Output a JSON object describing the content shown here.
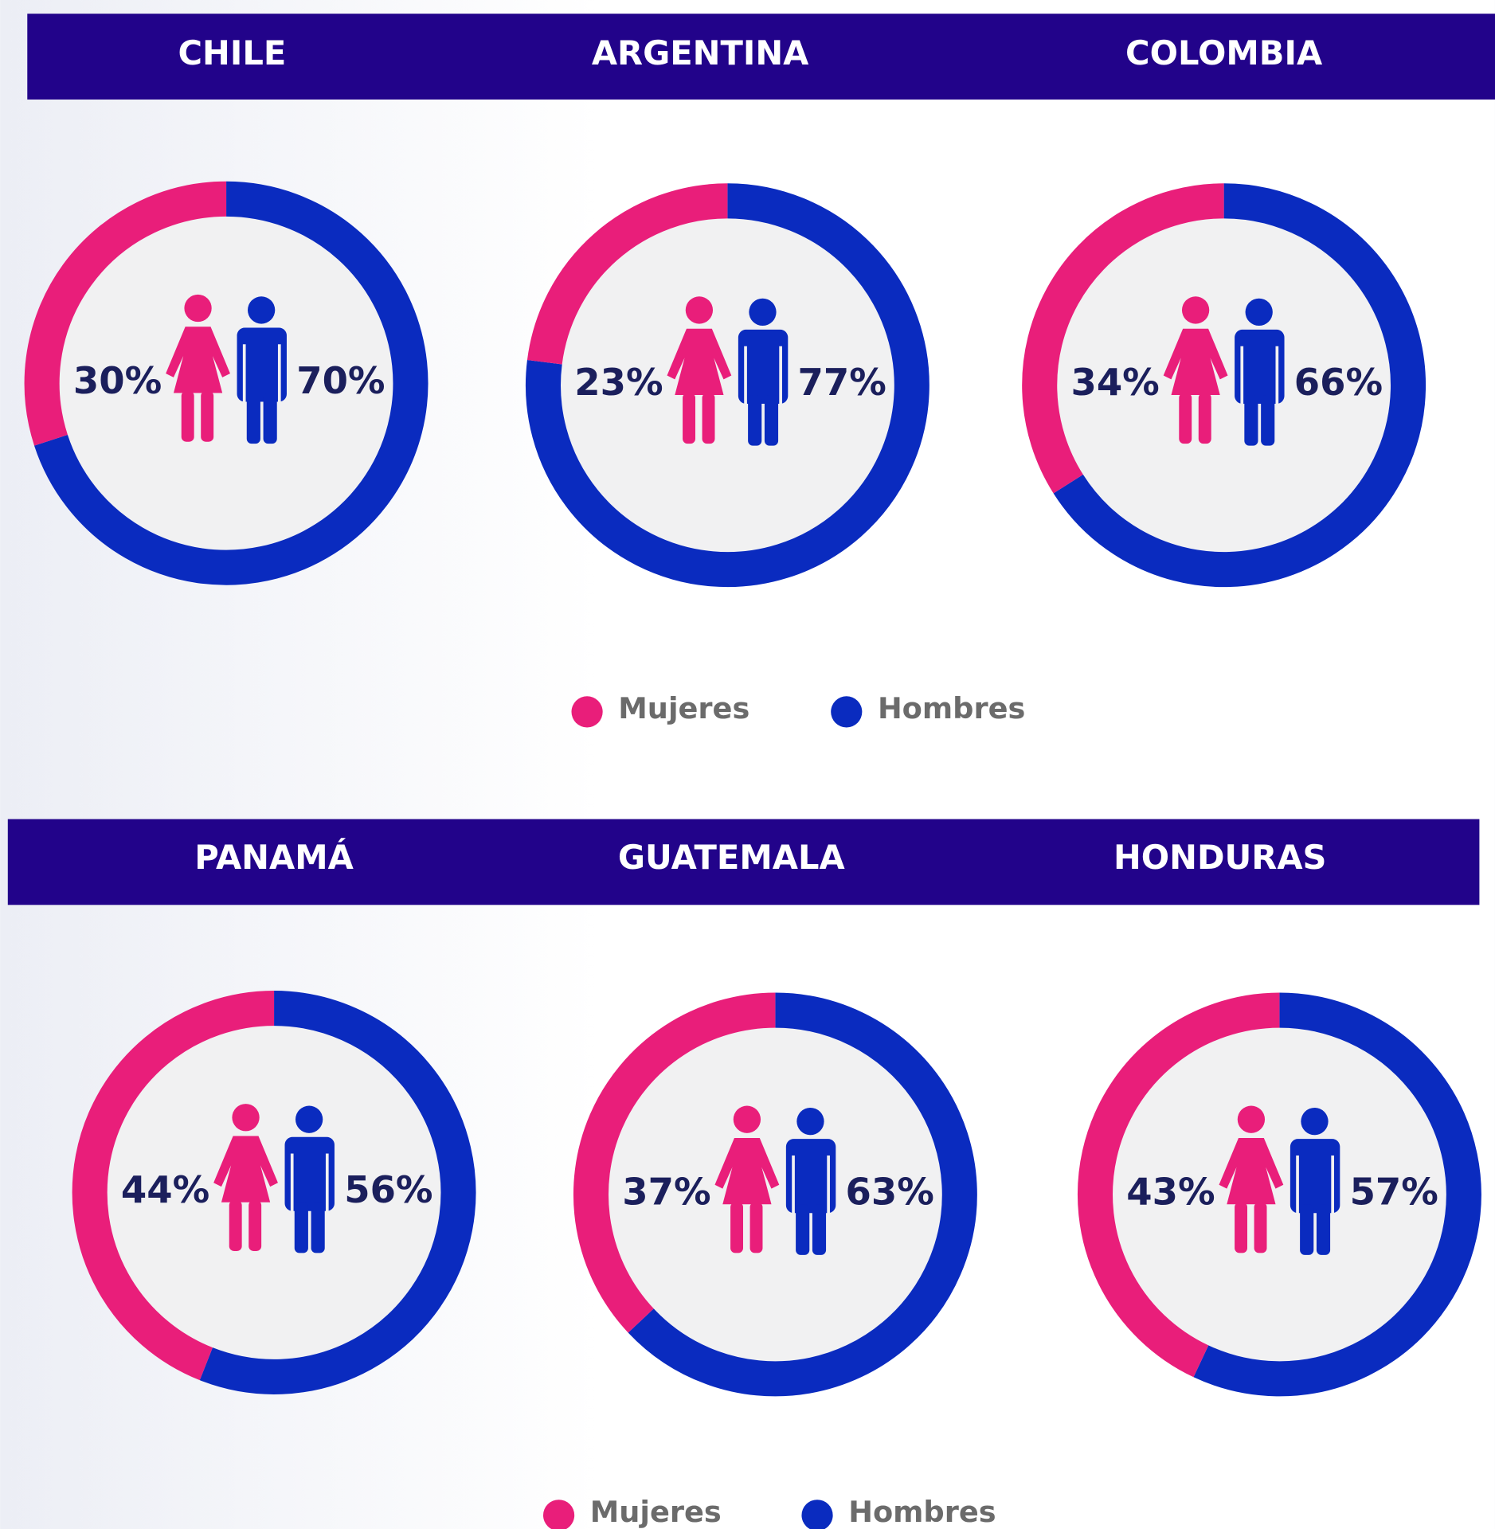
{
  "chart_data": [
    {
      "type": "donut",
      "title": "CHILE",
      "categories": [
        "Mujeres",
        "Hombres"
      ],
      "values": [
        30,
        70
      ],
      "value_labels": [
        "30%",
        "70%"
      ],
      "colors": [
        "#e91e7a",
        "#0a2bbf"
      ]
    },
    {
      "type": "donut",
      "title": "ARGENTINA",
      "categories": [
        "Mujeres",
        "Hombres"
      ],
      "values": [
        23,
        77
      ],
      "value_labels": [
        "23%",
        "77%"
      ],
      "colors": [
        "#e91e7a",
        "#0a2bbf"
      ]
    },
    {
      "type": "donut",
      "title": "COLOMBIA",
      "categories": [
        "Mujeres",
        "Hombres"
      ],
      "values": [
        34,
        66
      ],
      "value_labels": [
        "34%",
        "66%"
      ],
      "colors": [
        "#e91e7a",
        "#0a2bbf"
      ]
    },
    {
      "type": "donut",
      "title": "PANAMÁ",
      "categories": [
        "Mujeres",
        "Hombres"
      ],
      "values": [
        44,
        56
      ],
      "value_labels": [
        "44%",
        "56%"
      ],
      "colors": [
        "#e91e7a",
        "#0a2bbf"
      ]
    },
    {
      "type": "donut",
      "title": "GUATEMALA",
      "categories": [
        "Mujeres",
        "Hombres"
      ],
      "values": [
        37,
        63
      ],
      "value_labels": [
        "37%",
        "63%"
      ],
      "colors": [
        "#e91e7a",
        "#0a2bbf"
      ]
    },
    {
      "type": "donut",
      "title": "HONDURAS",
      "categories": [
        "Mujeres",
        "Hombres"
      ],
      "values": [
        43,
        57
      ],
      "value_labels": [
        "43%",
        "57%"
      ],
      "colors": [
        "#e91e7a",
        "#0a2bbf"
      ]
    }
  ]
}
